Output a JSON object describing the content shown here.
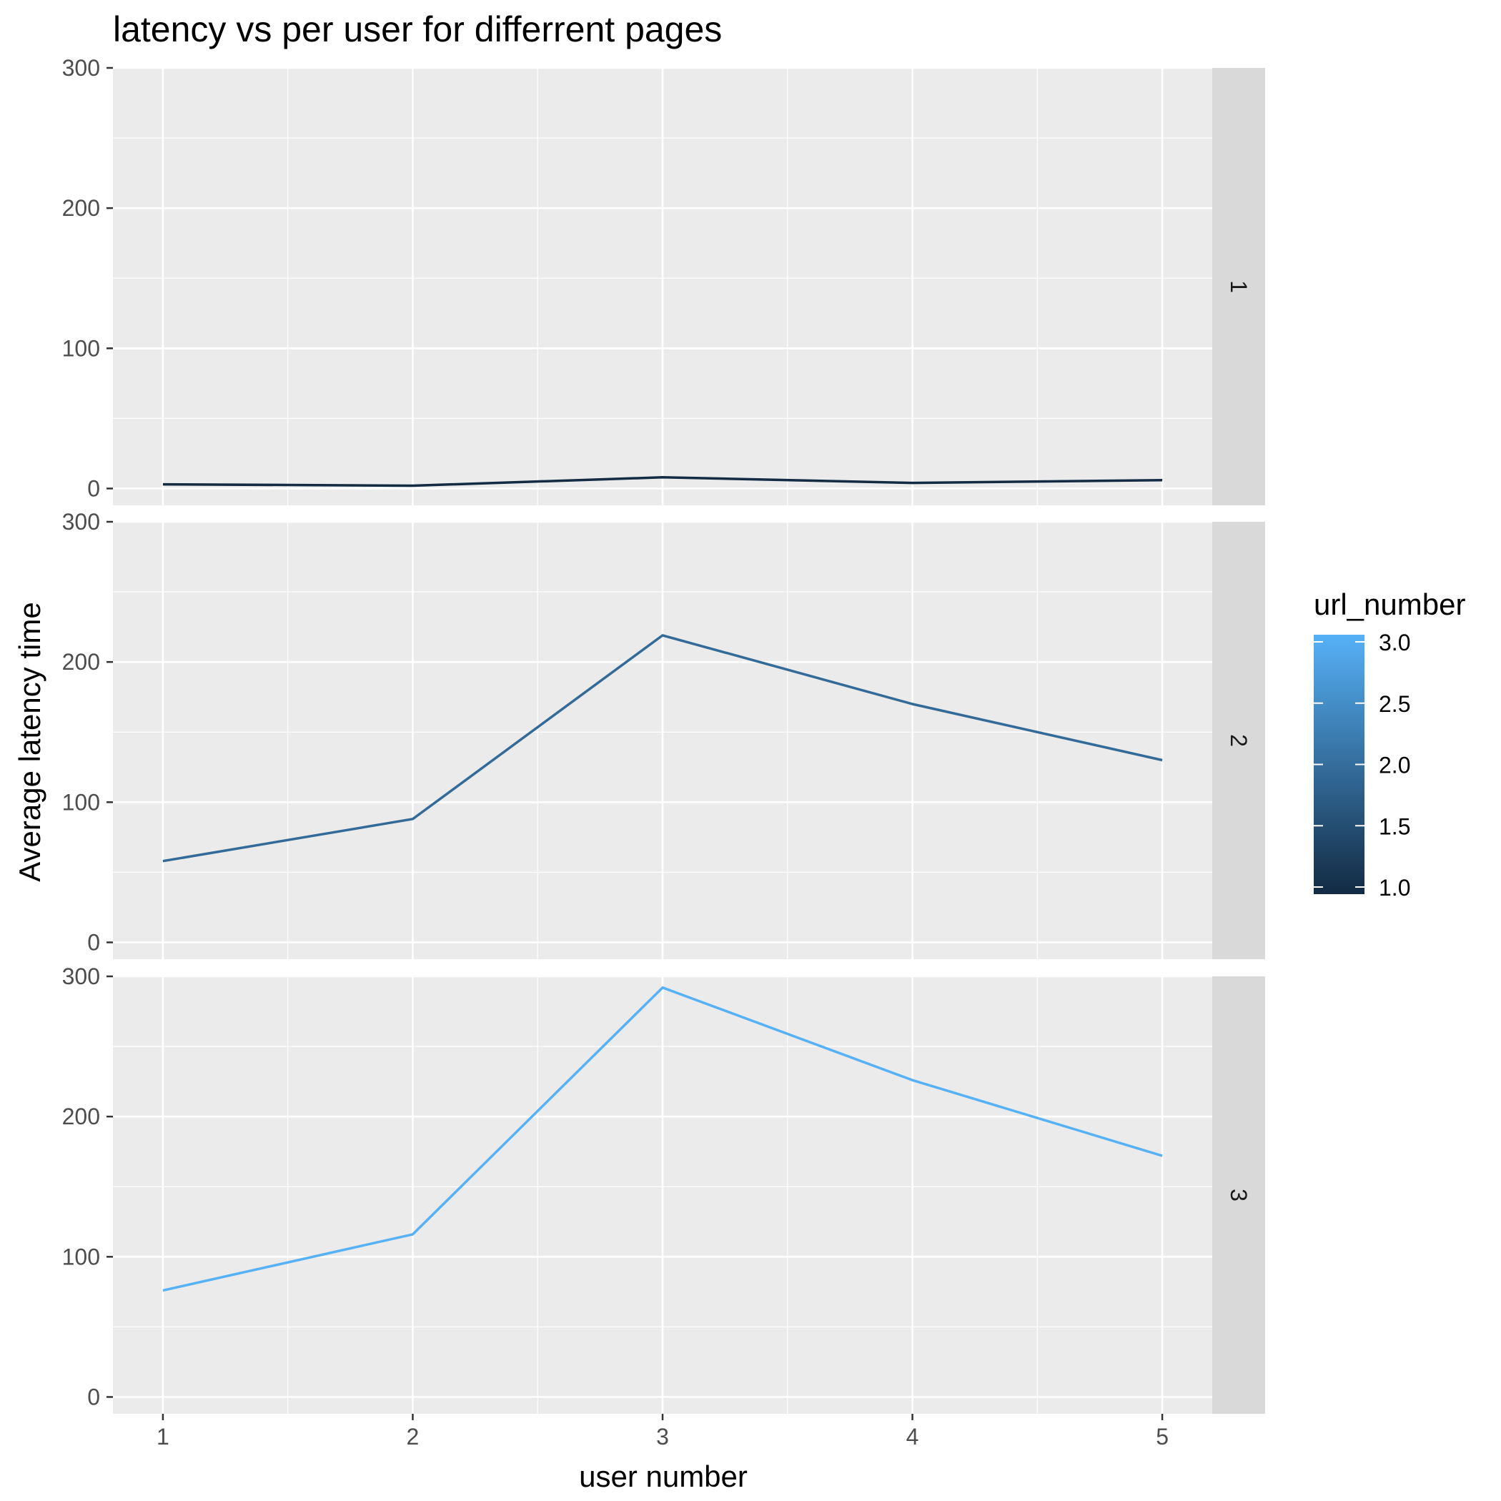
{
  "chart_data": {
    "type": "line",
    "title": "latency vs per user for differrent pages",
    "xlabel": "user number",
    "ylabel": "Average latency time",
    "x": [
      1,
      2,
      3,
      4,
      5
    ],
    "xlim": [
      0.8,
      5.2
    ],
    "ylim": [
      -12,
      300
    ],
    "x_ticks": [
      1,
      2,
      3,
      4,
      5
    ],
    "y_ticks": [
      0,
      100,
      200,
      300
    ],
    "grid": true,
    "facet_by": "url_number",
    "series": [
      {
        "facet": "1",
        "url_number": 1,
        "color": "#132b43",
        "values": [
          3,
          2,
          8,
          4,
          6
        ]
      },
      {
        "facet": "2",
        "url_number": 2,
        "color": "#336a98",
        "values": [
          58,
          88,
          219,
          170,
          130
        ]
      },
      {
        "facet": "3",
        "url_number": 3,
        "color": "#56b1f7",
        "values": [
          76,
          116,
          292,
          226,
          172
        ]
      }
    ],
    "legend": {
      "title": "url_number",
      "position": "right",
      "type": "colorbar",
      "range": [
        1,
        3
      ],
      "ticks": [
        "1.0",
        "1.5",
        "2.0",
        "2.5",
        "3.0"
      ],
      "low_color": "#132b43",
      "high_color": "#56b1f7"
    },
    "panel_background": "#ebebeb",
    "strip_background": "#d9d9d9"
  }
}
